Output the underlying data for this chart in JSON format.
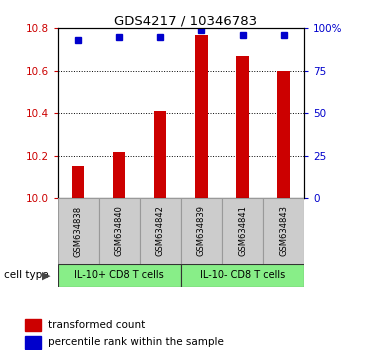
{
  "title": "GDS4217 / 10346783",
  "samples": [
    "GSM634838",
    "GSM634840",
    "GSM634842",
    "GSM634839",
    "GSM634841",
    "GSM634843"
  ],
  "bar_values": [
    10.15,
    10.22,
    10.41,
    10.77,
    10.67,
    10.6
  ],
  "percentile_values": [
    93,
    95,
    95,
    99,
    96,
    96
  ],
  "ylim_left": [
    10.0,
    10.8
  ],
  "ylim_right": [
    0,
    100
  ],
  "yticks_left": [
    10.0,
    10.2,
    10.4,
    10.6,
    10.8
  ],
  "yticks_right": [
    0,
    25,
    50,
    75,
    100
  ],
  "bar_color": "#cc0000",
  "percentile_color": "#0000cc",
  "group1_label": "IL-10+ CD8 T cells",
  "group2_label": "IL-10- CD8 T cells",
  "group1_indices": [
    0,
    1,
    2
  ],
  "group2_indices": [
    3,
    4,
    5
  ],
  "group_bg_color": "#88ee88",
  "sample_box_color": "#cccccc",
  "tick_label_color_left": "#cc0000",
  "tick_label_color_right": "#0000cc",
  "legend_bar_label": "transformed count",
  "legend_dot_label": "percentile rank within the sample",
  "cell_type_label": "cell type",
  "figsize": [
    3.71,
    3.54
  ],
  "dpi": 100
}
